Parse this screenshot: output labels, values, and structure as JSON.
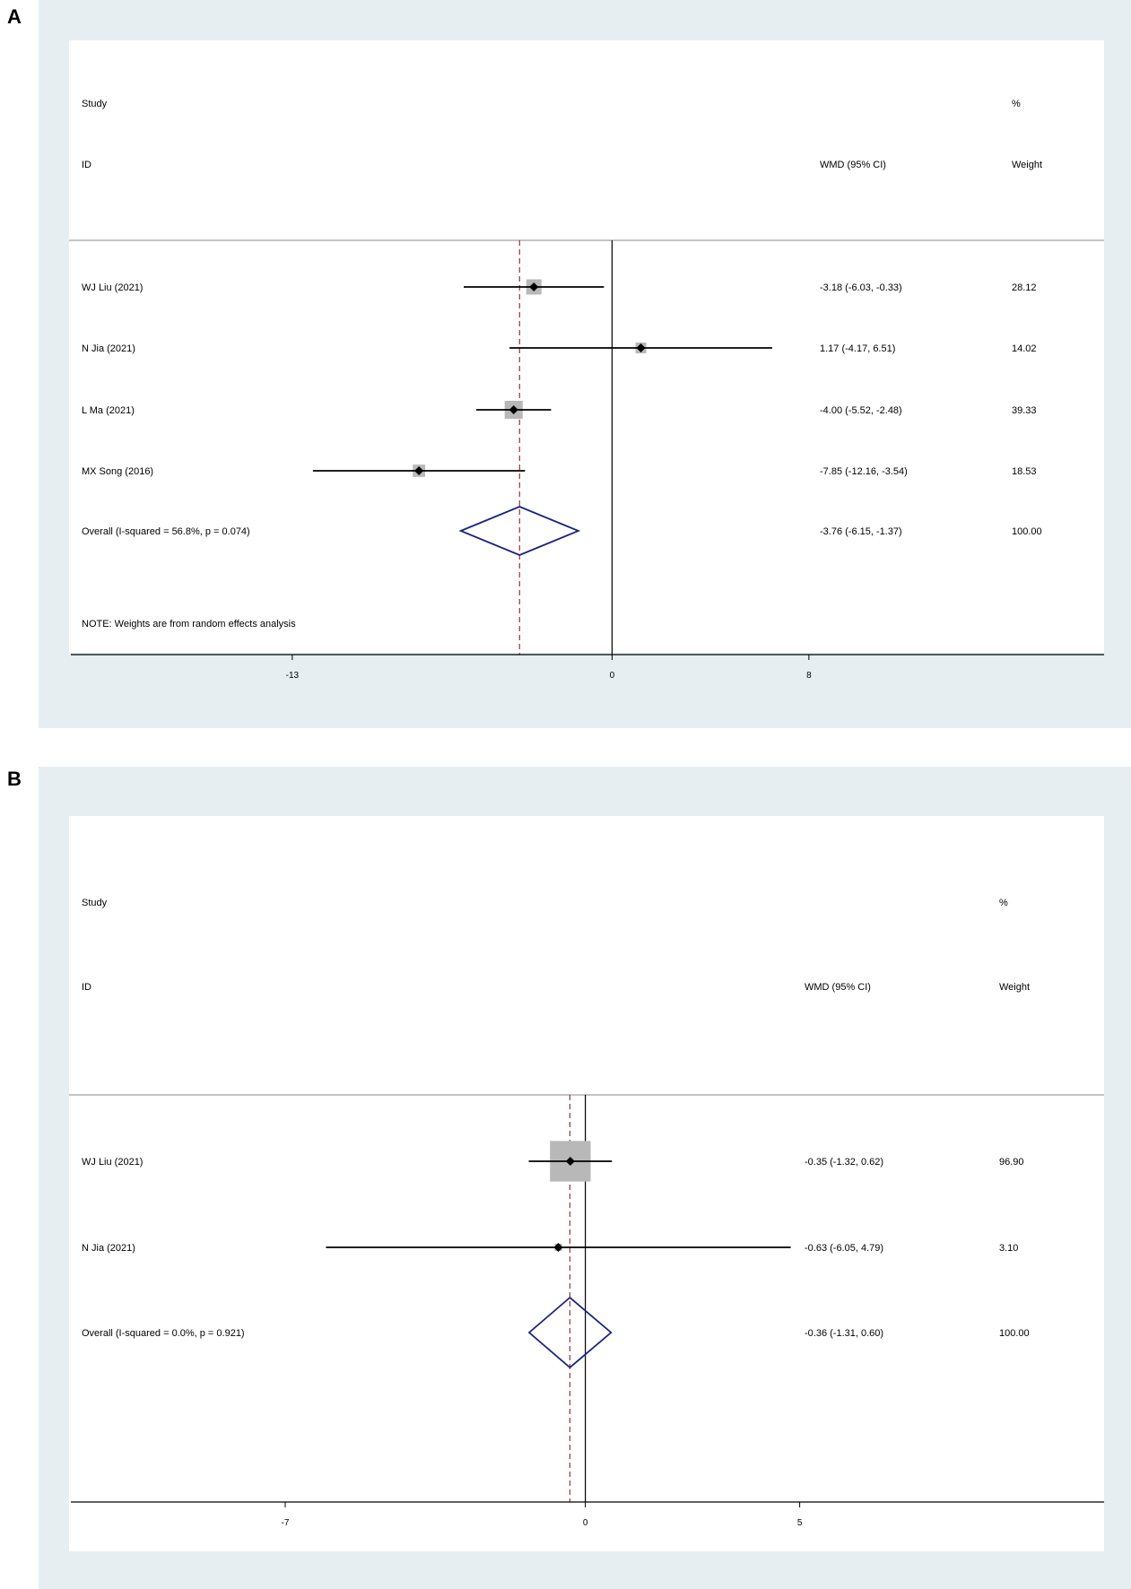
{
  "chart_data": [
    {
      "type": "forest",
      "panel": "A",
      "headers": {
        "study_line1": "Study",
        "study_line2": "ID",
        "effect": "WMD (95% CI)",
        "weight_line1": "%",
        "weight_line2": "Weight"
      },
      "studies": [
        {
          "label": "WJ Liu  (2021)",
          "estimate": -3.18,
          "ci_low": -6.03,
          "ci_high": -0.33,
          "ci_text": "-3.18 (-6.03, -0.33)",
          "weight": 28.12,
          "weight_text": "28.12"
        },
        {
          "label": "N Jia  (2021)",
          "estimate": 1.17,
          "ci_low": -4.17,
          "ci_high": 6.51,
          "ci_text": "1.17 (-4.17, 6.51)",
          "weight": 14.02,
          "weight_text": "14.02"
        },
        {
          "label": "L Ma  (2021)",
          "estimate": -4.0,
          "ci_low": -5.52,
          "ci_high": -2.48,
          "ci_text": "-4.00 (-5.52, -2.48)",
          "weight": 39.33,
          "weight_text": "39.33"
        },
        {
          "label": "MX Song  (2016)",
          "estimate": -7.85,
          "ci_low": -12.16,
          "ci_high": -3.54,
          "ci_text": "-7.85 (-12.16, -3.54)",
          "weight": 18.53,
          "weight_text": "18.53"
        }
      ],
      "overall": {
        "label": "Overall  (I-squared = 56.8%, p = 0.074)",
        "estimate": -3.76,
        "ci_low": -6.15,
        "ci_high": -1.37,
        "ci_text": "-3.76 (-6.15, -1.37)",
        "weight_text": "100.00"
      },
      "note": "NOTE: Weights are from random effects analysis",
      "ticks": [
        -13,
        0,
        8
      ],
      "tick_labels": [
        "-13",
        "0",
        "8"
      ],
      "xlim": [
        -22,
        20
      ]
    },
    {
      "type": "forest",
      "panel": "B",
      "headers": {
        "study_line1": "Study",
        "study_line2": "ID",
        "effect": "WMD (95% CI)",
        "weight_line1": "%",
        "weight_line2": "Weight"
      },
      "studies": [
        {
          "label": "WJ Liu  (2021)",
          "estimate": -0.35,
          "ci_low": -1.32,
          "ci_high": 0.62,
          "ci_text": "-0.35 (-1.32, 0.62)",
          "weight": 96.9,
          "weight_text": "96.90"
        },
        {
          "label": "N Jia  (2021)",
          "estimate": -0.63,
          "ci_low": -6.05,
          "ci_high": 4.79,
          "ci_text": "-0.63 (-6.05, 4.79)",
          "weight": 3.1,
          "weight_text": "3.10"
        }
      ],
      "overall": {
        "label": "Overall  (I-squared = 0.0%, p = 0.921)",
        "estimate": -0.36,
        "ci_low": -1.31,
        "ci_high": 0.6,
        "ci_text": "-0.36 (-1.31, 0.60)",
        "weight_text": "100.00"
      },
      "note": "",
      "ticks": [
        -7,
        0,
        5
      ],
      "tick_labels": [
        "-7",
        "0",
        "5"
      ],
      "xlim": [
        -12,
        12.1
      ]
    }
  ],
  "colors": {
    "ci_line": "#000000",
    "marker": "#000000",
    "weight_box": "#b8b8b8",
    "diamond": "#1a237e",
    "reference_line": "#a03040",
    "panel_background": "#e6eef2"
  }
}
